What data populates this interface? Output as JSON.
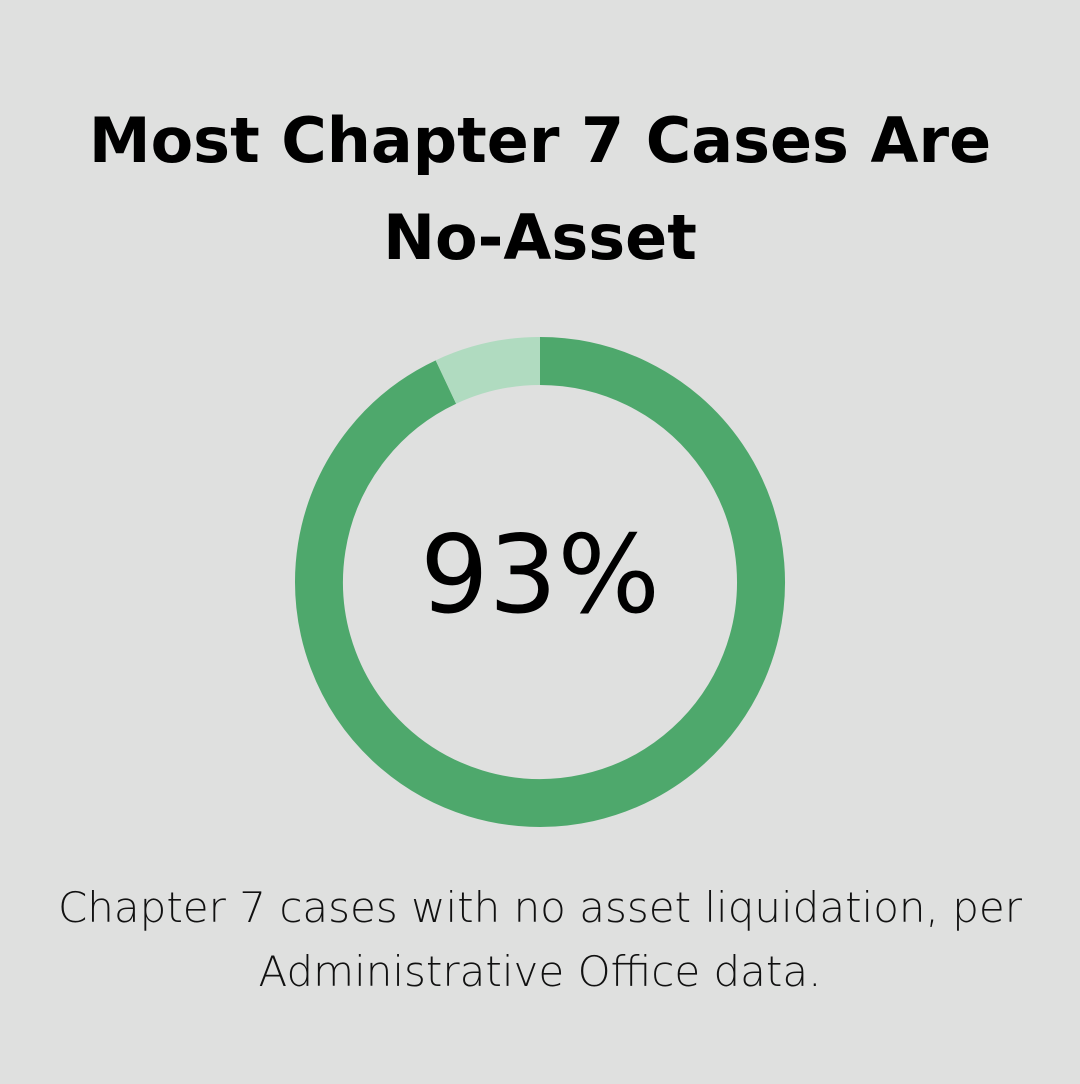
{
  "chart_data": {
    "type": "donut",
    "title": "Most Chapter 7 Cases Are No-Asset",
    "subtitle": "Chapter 7 cases with no asset liquidation, per Administrative Office data.",
    "values": [
      93,
      7
    ],
    "value_labels": [
      "93%",
      null
    ],
    "colors": [
      "#4ea86c",
      "#b0dbc0"
    ]
  }
}
